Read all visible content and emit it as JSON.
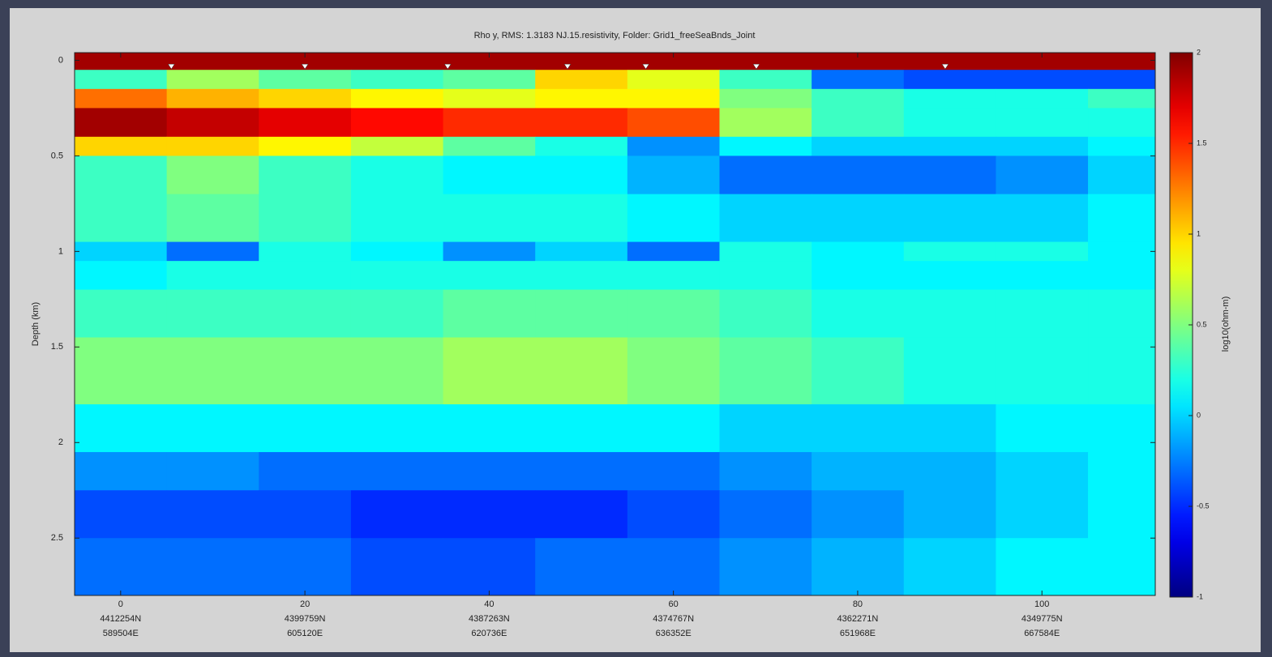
{
  "chart_data": {
    "type": "heatmap",
    "title": "Rho y, RMS: 1.3183  NJ.15.resistivity, Folder: Grid1_freeSeaBnds_Joint",
    "y_label": "Depth (km)",
    "colorbar_label": "log10(ohm-m)",
    "colormap": "jet",
    "xlim": [
      -5,
      112.3
    ],
    "ylim": [
      -0.04,
      2.8
    ],
    "y_reversed": true,
    "xticks": [
      0,
      20,
      40,
      60,
      80,
      100
    ],
    "xtick_northing": [
      "4412254N",
      "4399759N",
      "4387263N",
      "4374767N",
      "4362271N",
      "4349775N"
    ],
    "xtick_easting": [
      "589504E",
      "605120E",
      "620736E",
      "636352E",
      "651968E",
      "667584E"
    ],
    "yticks": [
      0,
      0.5,
      1,
      1.5,
      2,
      2.5
    ],
    "clim": [
      -1,
      2
    ],
    "cticks": [
      -1,
      -0.5,
      0,
      0.5,
      1,
      1.5,
      2
    ],
    "stations": {
      "color": "#ffffff",
      "depth": 0.02,
      "x": [
        5.5,
        20,
        35.5,
        48.5,
        57,
        69,
        89.5
      ]
    },
    "x_edges": [
      -5,
      5,
      15,
      25,
      35,
      45,
      55,
      65,
      75,
      85,
      95,
      105,
      112.3
    ],
    "y_edges": [
      -0.04,
      0.05,
      0.15,
      0.25,
      0.4,
      0.5,
      0.7,
      0.95,
      1.05,
      1.2,
      1.45,
      1.8,
      2.05,
      2.25,
      2.5,
      2.8
    ],
    "values": [
      [
        1.9,
        1.9,
        1.9,
        1.9,
        1.9,
        1.9,
        1.9,
        1.9,
        1.9,
        1.9,
        1.9,
        1.9
      ],
      [
        0.3,
        0.6,
        0.4,
        0.3,
        0.4,
        1.0,
        0.8,
        0.3,
        -0.3,
        -0.4,
        -0.4,
        -0.4
      ],
      [
        1.3,
        1.1,
        1.0,
        0.9,
        0.8,
        0.9,
        0.9,
        0.5,
        0.3,
        0.2,
        0.2,
        0.3
      ],
      [
        1.9,
        1.8,
        1.7,
        1.6,
        1.5,
        1.5,
        1.4,
        0.6,
        0.3,
        0.2,
        0.2,
        0.2
      ],
      [
        1.0,
        1.0,
        0.9,
        0.7,
        0.4,
        0.2,
        -0.2,
        0.1,
        0.0,
        0.0,
        0.0,
        0.1
      ],
      [
        0.3,
        0.5,
        0.3,
        0.2,
        0.1,
        0.1,
        -0.1,
        -0.3,
        -0.3,
        -0.3,
        -0.2,
        0.0
      ],
      [
        0.3,
        0.4,
        0.3,
        0.2,
        0.2,
        0.2,
        0.1,
        0.0,
        0.0,
        0.0,
        0.0,
        0.1
      ],
      [
        0.0,
        -0.3,
        0.2,
        0.1,
        -0.2,
        0.0,
        -0.3,
        0.2,
        0.1,
        0.2,
        0.2,
        0.1
      ],
      [
        0.1,
        0.2,
        0.2,
        0.2,
        0.2,
        0.2,
        0.2,
        0.2,
        0.1,
        0.1,
        0.1,
        0.1
      ],
      [
        0.3,
        0.3,
        0.3,
        0.3,
        0.4,
        0.4,
        0.4,
        0.3,
        0.2,
        0.2,
        0.2,
        0.2
      ],
      [
        0.5,
        0.5,
        0.5,
        0.5,
        0.6,
        0.6,
        0.5,
        0.4,
        0.3,
        0.2,
        0.2,
        0.2
      ],
      [
        0.1,
        0.1,
        0.1,
        0.1,
        0.1,
        0.1,
        0.1,
        0.0,
        0.0,
        0.0,
        0.1,
        0.1
      ],
      [
        -0.2,
        -0.2,
        -0.3,
        -0.3,
        -0.3,
        -0.3,
        -0.3,
        -0.2,
        -0.1,
        -0.1,
        0.0,
        0.1
      ],
      [
        -0.4,
        -0.4,
        -0.4,
        -0.5,
        -0.5,
        -0.5,
        -0.4,
        -0.3,
        -0.2,
        -0.1,
        0.0,
        0.1
      ],
      [
        -0.3,
        -0.3,
        -0.3,
        -0.4,
        -0.4,
        -0.3,
        -0.3,
        -0.2,
        -0.1,
        0.0,
        0.1,
        0.1
      ]
    ]
  }
}
